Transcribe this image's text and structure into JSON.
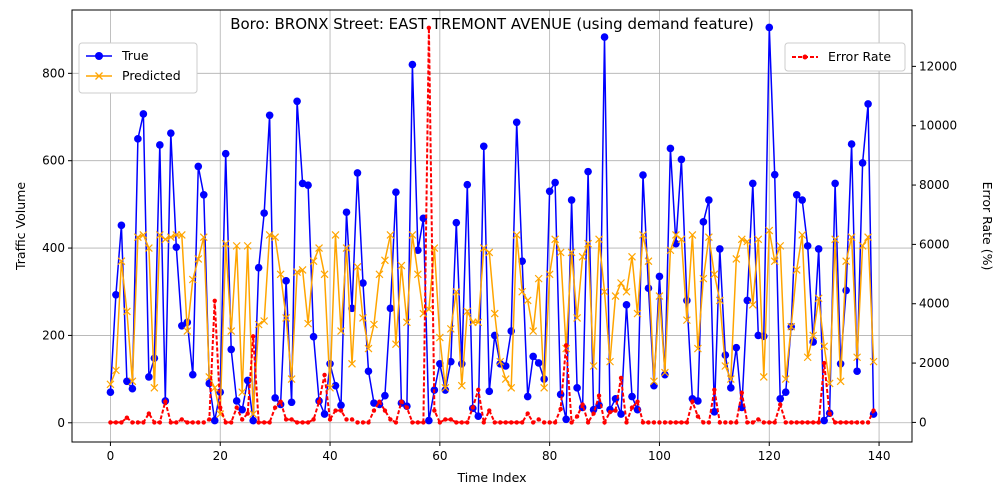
{
  "chart_data": {
    "type": "line",
    "title": "Boro: BRONX Street: EAST TREMONT AVENUE (using demand feature)",
    "xlabel": "Time Index",
    "ylabel": "Traffic Volume",
    "y2label": "Error Rate (%)",
    "xlim": [
      -7,
      146
    ],
    "ylim": [
      -44,
      945
    ],
    "y2lim": [
      -660,
      13900
    ],
    "xticks": [
      "0",
      "20",
      "40",
      "60",
      "80",
      "100",
      "120",
      "140"
    ],
    "yticks": [
      "0",
      "200",
      "400",
      "600",
      "800"
    ],
    "y2ticks": [
      "0",
      "2000",
      "4000",
      "6000",
      "8000",
      "10000",
      "12000"
    ],
    "grid": true,
    "legend_left": "upper-left",
    "legend_right": "upper-right",
    "series": [
      {
        "name": "True",
        "axis": "left",
        "color": "#0000ff",
        "marker": "circle",
        "values": [
          70,
          293,
          452,
          95,
          78,
          650,
          707,
          105,
          148,
          636,
          50,
          663,
          402,
          222,
          230,
          110,
          587,
          522,
          90,
          5,
          70,
          616,
          168,
          50,
          30,
          97,
          5,
          355,
          480,
          704,
          57,
          42,
          325,
          47,
          736,
          548,
          544,
          197,
          50,
          20,
          135,
          85,
          40,
          482,
          262,
          572,
          320,
          118,
          45,
          42,
          62,
          262,
          528,
          45,
          38,
          820,
          395,
          468,
          5,
          75,
          135,
          75,
          140,
          458,
          135,
          545,
          33,
          15,
          633,
          72,
          200,
          135,
          130,
          210,
          688,
          370,
          60,
          152,
          137,
          100,
          530,
          550,
          65,
          8,
          510,
          80,
          35,
          575,
          30,
          40,
          883,
          30,
          55,
          20,
          270,
          60,
          30,
          567,
          308,
          85,
          335,
          110,
          628,
          410,
          603,
          280,
          55,
          50,
          460,
          510,
          25,
          398,
          155,
          80,
          172,
          35,
          280,
          548,
          200,
          198,
          905,
          568,
          55,
          70,
          220,
          522,
          510,
          405,
          185,
          398,
          5,
          22,
          548,
          135,
          303,
          638,
          118,
          595,
          730,
          20
        ]
      },
      {
        "name": "Predicted",
        "axis": "left",
        "color": "#ffa500",
        "marker": "x",
        "values": [
          88,
          120,
          370,
          255,
          95,
          425,
          430,
          400,
          80,
          430,
          420,
          425,
          430,
          430,
          210,
          328,
          375,
          425,
          105,
          80,
          20,
          410,
          210,
          405,
          70,
          405,
          20,
          225,
          233,
          430,
          425,
          340,
          240,
          100,
          345,
          350,
          227,
          370,
          400,
          340,
          80,
          430,
          210,
          400,
          135,
          357,
          240,
          170,
          225,
          340,
          372,
          430,
          180,
          360,
          230,
          430,
          340,
          250,
          260,
          400,
          195,
          80,
          215,
          300,
          85,
          255,
          230,
          230,
          400,
          390,
          250,
          140,
          100,
          80,
          430,
          300,
          280,
          210,
          330,
          80,
          340,
          420,
          390,
          170,
          390,
          240,
          380,
          410,
          130,
          420,
          300,
          140,
          290,
          320,
          300,
          380,
          250,
          430,
          370,
          95,
          290,
          115,
          395,
          430,
          420,
          235,
          430,
          170,
          330,
          425,
          340,
          280,
          130,
          100,
          375,
          420,
          415,
          270,
          420,
          105,
          440,
          370,
          405,
          100,
          220,
          350,
          430,
          150,
          200,
          285,
          175,
          90,
          420,
          95,
          370,
          425,
          150,
          405,
          425,
          140
        ]
      },
      {
        "name": "Error Rate",
        "axis": "right",
        "color": "#ff0000",
        "marker": "dot",
        "dashed": true,
        "values": [
          0,
          0,
          0,
          160,
          0,
          0,
          0,
          300,
          0,
          0,
          700,
          0,
          0,
          100,
          0,
          0,
          0,
          0,
          100,
          4100,
          500,
          0,
          0,
          500,
          100,
          300,
          2900,
          0,
          0,
          0,
          500,
          700,
          100,
          100,
          0,
          0,
          0,
          100,
          700,
          1600,
          100,
          400,
          400,
          100,
          100,
          0,
          0,
          0,
          400,
          700,
          400,
          100,
          0,
          700,
          500,
          0,
          0,
          0,
          13300,
          400,
          0,
          100,
          100,
          0,
          0,
          0,
          500,
          1100,
          0,
          400,
          0,
          0,
          0,
          0,
          0,
          0,
          300,
          0,
          100,
          0,
          0,
          0,
          450,
          2600,
          0,
          200,
          600,
          0,
          300,
          900,
          0,
          350,
          400,
          1500,
          0,
          500,
          700,
          0,
          0,
          0,
          0,
          0,
          0,
          0,
          0,
          0,
          700,
          200,
          0,
          0,
          1100,
          0,
          0,
          0,
          0,
          1000,
          0,
          0,
          100,
          0,
          0,
          0,
          600,
          0,
          0,
          0,
          0,
          0,
          0,
          0,
          2000,
          300,
          0,
          0,
          0,
          0,
          0,
          0,
          0,
          400
        ]
      }
    ]
  }
}
